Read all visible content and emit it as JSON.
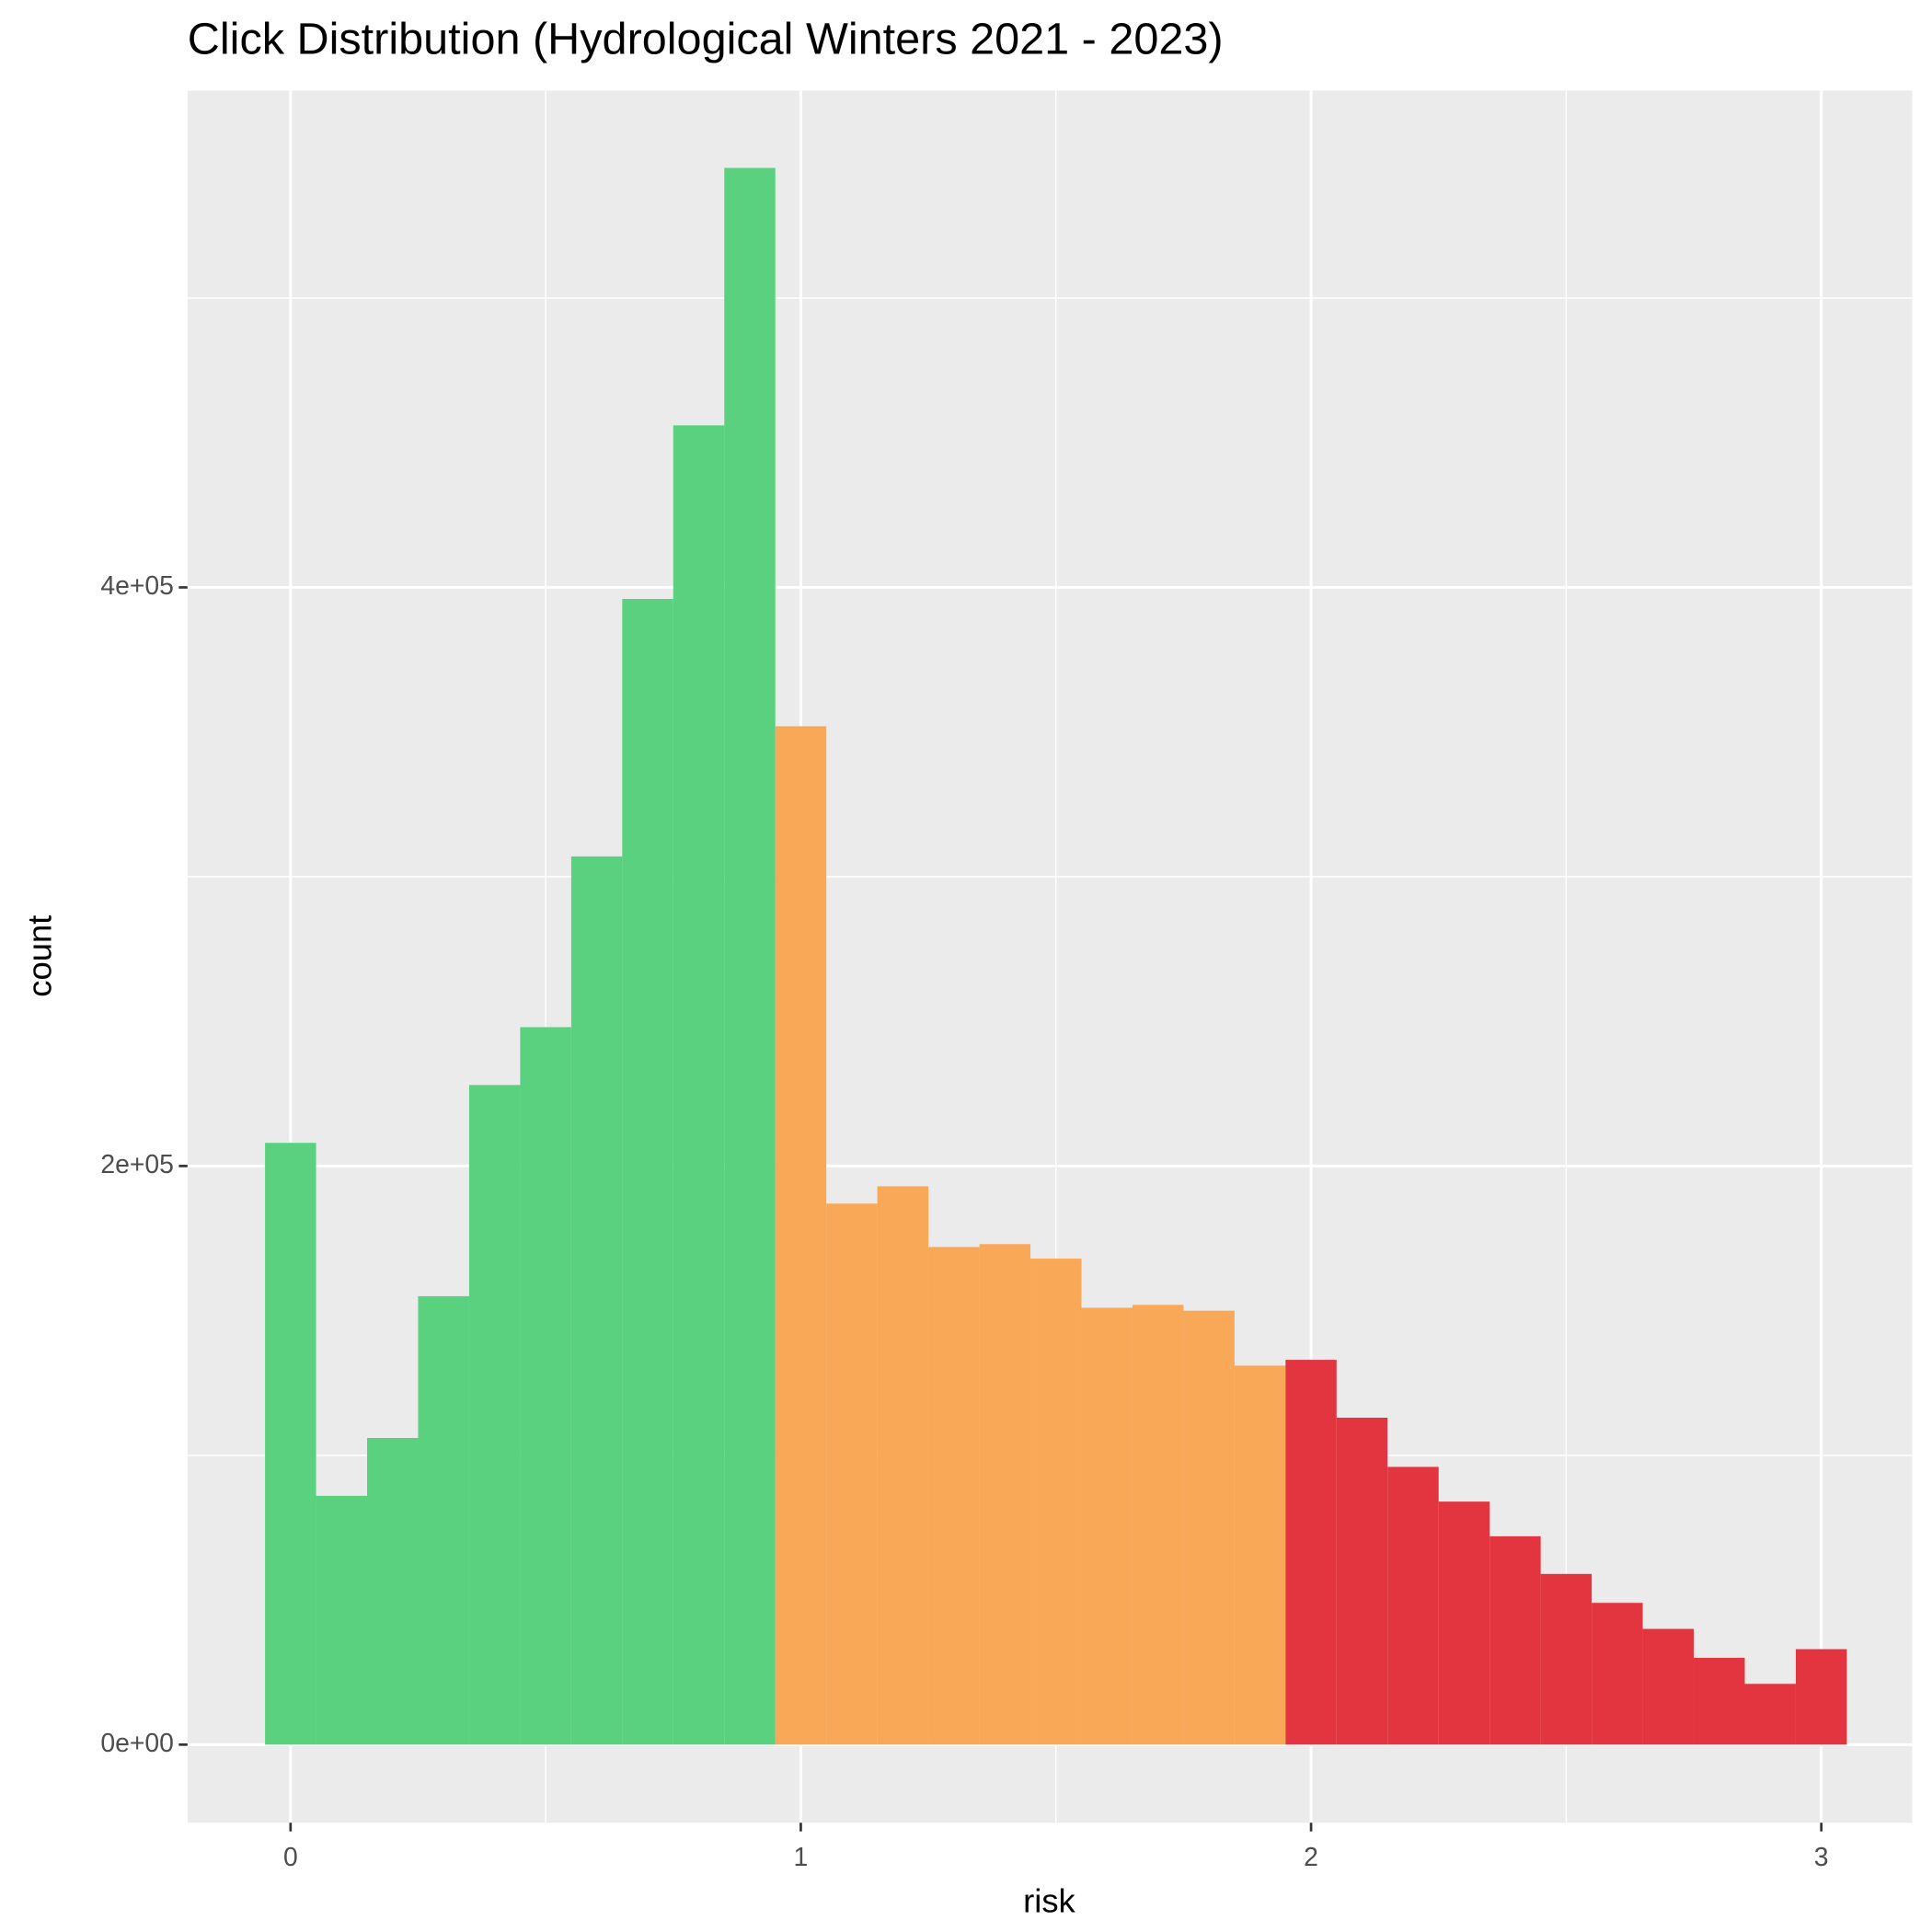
{
  "chart_data": {
    "type": "histogram",
    "title": "Click Distribution (Hydrological Winters 2021 - 2023)",
    "x_label": "risk",
    "y_label": "count",
    "bins": [
      -0.05,
      0.05,
      0.15,
      0.25,
      0.35,
      0.45,
      0.55,
      0.65,
      0.75,
      0.85,
      0.95,
      1.05,
      1.15,
      1.25,
      1.35,
      1.45,
      1.55,
      1.65,
      1.75,
      1.85,
      1.95,
      2.05,
      2.15,
      2.25,
      2.35,
      2.45,
      2.55,
      2.65,
      2.75,
      2.85,
      2.95,
      3.05
    ],
    "values": [
      208000,
      86000,
      106000,
      155000,
      228000,
      248000,
      307000,
      396000,
      456000,
      545000,
      352000,
      187000,
      193000,
      172000,
      173000,
      168000,
      151000,
      152000,
      150000,
      131000,
      133000,
      113000,
      96000,
      84000,
      72000,
      59000,
      49000,
      40000,
      30000,
      21000,
      33000
    ],
    "colors": [
      "#59d17f",
      "#59d17f",
      "#59d17f",
      "#59d17f",
      "#59d17f",
      "#59d17f",
      "#59d17f",
      "#59d17f",
      "#59d17f",
      "#59d17f",
      "#f9a857",
      "#f9a857",
      "#f9a857",
      "#f9a857",
      "#f9a857",
      "#f9a857",
      "#f9a857",
      "#f9a857",
      "#f9a857",
      "#f9a857",
      "#e3353f",
      "#e3353f",
      "#e3353f",
      "#e3353f",
      "#e3353f",
      "#e3353f",
      "#e3353f",
      "#e3353f",
      "#e3353f",
      "#e3353f",
      "#e3353f"
    ],
    "xlim": [
      -0.202,
      3.178
    ],
    "ylim": [
      -27000,
      571700
    ],
    "xticks": [
      0,
      1,
      2,
      3
    ],
    "yticks": [
      {
        "value": 0,
        "label": "0e+00"
      },
      {
        "value": 200000,
        "label": "2e+05"
      },
      {
        "value": 400000,
        "label": "4e+05"
      }
    ],
    "xminor": [
      0.5,
      1.5,
      2.5
    ],
    "yminor": [
      100000,
      300000,
      500000
    ],
    "grid": true
  }
}
